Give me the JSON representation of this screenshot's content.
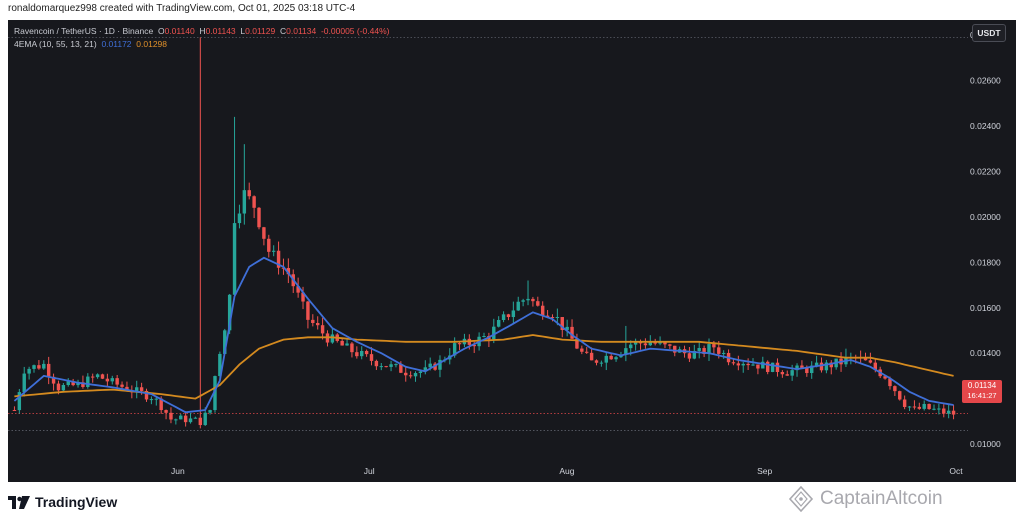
{
  "caption": "ronaldomarquez998 created with TradingView.com, Oct 01, 2025 03:18 UTC-4",
  "legend": {
    "symbol": "Ravencoin / TetherUS · 1D · Binance",
    "o_label": "O",
    "o_value": "0.01140",
    "h_label": "H",
    "h_value": "0.01143",
    "l_label": "L",
    "l_value": "0.01129",
    "c_label": "C",
    "c_value": "0.01134",
    "change": "-0.00005 (-0.44%)",
    "indicator": "4EMA (10, 55, 13, 21)",
    "ema_fast_value": "0.01172",
    "ema_slow_value": "0.01298"
  },
  "currency": "USDT",
  "price_badge": {
    "price": "0.01134",
    "timer": "16:41:27"
  },
  "brand": "TradingView",
  "watermark": "CaptainAltcoin",
  "colors": {
    "up": "#26a69a",
    "down": "#ef5350",
    "ema_fast": "#3f6fd8",
    "ema_slow": "#d48a1f",
    "background": "#17181d",
    "axis_text": "#d1d4dc"
  },
  "chart_data": {
    "type": "candlestick",
    "x_axis": {
      "ticks": [
        "Jun",
        "Jul",
        "Aug",
        "Sep",
        "Oct"
      ],
      "range": [
        "2025-05-06",
        "2025-10-01"
      ]
    },
    "y_axis": {
      "ticks": [
        "0.02800",
        "0.02600",
        "0.02400",
        "0.02200",
        "0.02000",
        "0.01800",
        "0.01600",
        "0.01400",
        "0.01200",
        "0.01000"
      ],
      "range": [
        0.0093,
        0.0284
      ]
    },
    "reference_lines": {
      "high": 0.0279,
      "low": 0.0106,
      "last": 0.01134
    },
    "anchors": {
      "close": [
        [
          0,
          0.0115
        ],
        [
          2,
          0.0133
        ],
        [
          6,
          0.0135
        ],
        [
          9,
          0.0125
        ],
        [
          13,
          0.0126
        ],
        [
          17,
          0.013
        ],
        [
          20,
          0.0127
        ],
        [
          25,
          0.0123
        ],
        [
          28,
          0.0121
        ],
        [
          30,
          0.0117
        ],
        [
          32,
          0.0111
        ],
        [
          35,
          0.0111
        ],
        [
          38,
          0.011
        ],
        [
          40,
          0.0115
        ],
        [
          41,
          0.013
        ],
        [
          43,
          0.0152
        ],
        [
          44,
          0.0165
        ],
        [
          45,
          0.02
        ],
        [
          47,
          0.021
        ],
        [
          49,
          0.0205
        ],
        [
          52,
          0.0185
        ],
        [
          56,
          0.0175
        ],
        [
          60,
          0.0155
        ],
        [
          64,
          0.0147
        ],
        [
          68,
          0.0142
        ],
        [
          73,
          0.0137
        ],
        [
          77,
          0.0134
        ],
        [
          80,
          0.0132
        ],
        [
          84,
          0.0132
        ],
        [
          87,
          0.0136
        ],
        [
          90,
          0.0143
        ],
        [
          94,
          0.0145
        ],
        [
          97,
          0.0148
        ],
        [
          100,
          0.0155
        ],
        [
          103,
          0.0162
        ],
        [
          105,
          0.0165
        ],
        [
          107,
          0.016
        ],
        [
          110,
          0.0158
        ],
        [
          113,
          0.0149
        ],
        [
          116,
          0.014
        ],
        [
          118,
          0.0136
        ],
        [
          120,
          0.0138
        ],
        [
          123,
          0.014
        ],
        [
          126,
          0.0144
        ],
        [
          130,
          0.0145
        ],
        [
          134,
          0.0142
        ],
        [
          137,
          0.014
        ],
        [
          140,
          0.014
        ],
        [
          143,
          0.0143
        ],
        [
          146,
          0.0138
        ],
        [
          150,
          0.0136
        ],
        [
          154,
          0.0134
        ],
        [
          158,
          0.0132
        ],
        [
          162,
          0.0133
        ],
        [
          165,
          0.0134
        ],
        [
          169,
          0.0136
        ],
        [
          172,
          0.0138
        ],
        [
          174,
          0.0136
        ],
        [
          176,
          0.0133
        ],
        [
          178,
          0.013
        ],
        [
          180,
          0.0124
        ],
        [
          182,
          0.0118
        ],
        [
          184,
          0.0115
        ],
        [
          186,
          0.0116
        ],
        [
          188,
          0.0115
        ],
        [
          190,
          0.0114
        ],
        [
          192,
          0.01134
        ]
      ],
      "ema_fast": [
        [
          0,
          0.0119
        ],
        [
          6,
          0.013
        ],
        [
          13,
          0.0127
        ],
        [
          20,
          0.0125
        ],
        [
          28,
          0.0122
        ],
        [
          35,
          0.0114
        ],
        [
          39,
          0.0115
        ],
        [
          42,
          0.0128
        ],
        [
          45,
          0.0165
        ],
        [
          48,
          0.0178
        ],
        [
          51,
          0.0182
        ],
        [
          55,
          0.0178
        ],
        [
          60,
          0.0164
        ],
        [
          65,
          0.0151
        ],
        [
          70,
          0.0145
        ],
        [
          75,
          0.014
        ],
        [
          80,
          0.0134
        ],
        [
          84,
          0.0132
        ],
        [
          88,
          0.0137
        ],
        [
          92,
          0.0142
        ],
        [
          97,
          0.0147
        ],
        [
          102,
          0.0153
        ],
        [
          106,
          0.0158
        ],
        [
          110,
          0.0155
        ],
        [
          114,
          0.0148
        ],
        [
          118,
          0.0142
        ],
        [
          124,
          0.0139
        ],
        [
          130,
          0.0142
        ],
        [
          136,
          0.0141
        ],
        [
          142,
          0.014
        ],
        [
          148,
          0.0137
        ],
        [
          154,
          0.0135
        ],
        [
          160,
          0.0133
        ],
        [
          166,
          0.0135
        ],
        [
          171,
          0.0137
        ],
        [
          175,
          0.0134
        ],
        [
          179,
          0.0129
        ],
        [
          183,
          0.0123
        ],
        [
          187,
          0.0119
        ],
        [
          192,
          0.01172
        ]
      ],
      "ema_slow": [
        [
          0,
          0.0121
        ],
        [
          10,
          0.0123
        ],
        [
          20,
          0.0124
        ],
        [
          30,
          0.0122
        ],
        [
          37,
          0.012
        ],
        [
          42,
          0.0126
        ],
        [
          46,
          0.0135
        ],
        [
          50,
          0.0142
        ],
        [
          55,
          0.0146
        ],
        [
          60,
          0.0147
        ],
        [
          65,
          0.0147
        ],
        [
          70,
          0.0146
        ],
        [
          80,
          0.0145
        ],
        [
          90,
          0.0145
        ],
        [
          100,
          0.0146
        ],
        [
          106,
          0.0148
        ],
        [
          112,
          0.0146
        ],
        [
          120,
          0.0145
        ],
        [
          130,
          0.0145
        ],
        [
          140,
          0.0145
        ],
        [
          150,
          0.0143
        ],
        [
          160,
          0.0141
        ],
        [
          170,
          0.0138
        ],
        [
          175,
          0.0138
        ],
        [
          180,
          0.0136
        ],
        [
          186,
          0.0133
        ],
        [
          192,
          0.013
        ]
      ]
    },
    "spikes": [
      [
        38,
        0.0279
      ],
      [
        45,
        0.0244
      ],
      [
        47,
        0.0232
      ],
      [
        105,
        0.0172
      ],
      [
        125,
        0.0152
      ],
      [
        170,
        0.0142
      ]
    ],
    "ema_fast_name": "4EMA (10, 55, 13, 21)",
    "ema_slow_name": "4EMA (10, 55, 13, 21)",
    "grid": false,
    "last_price": 0.01134
  }
}
